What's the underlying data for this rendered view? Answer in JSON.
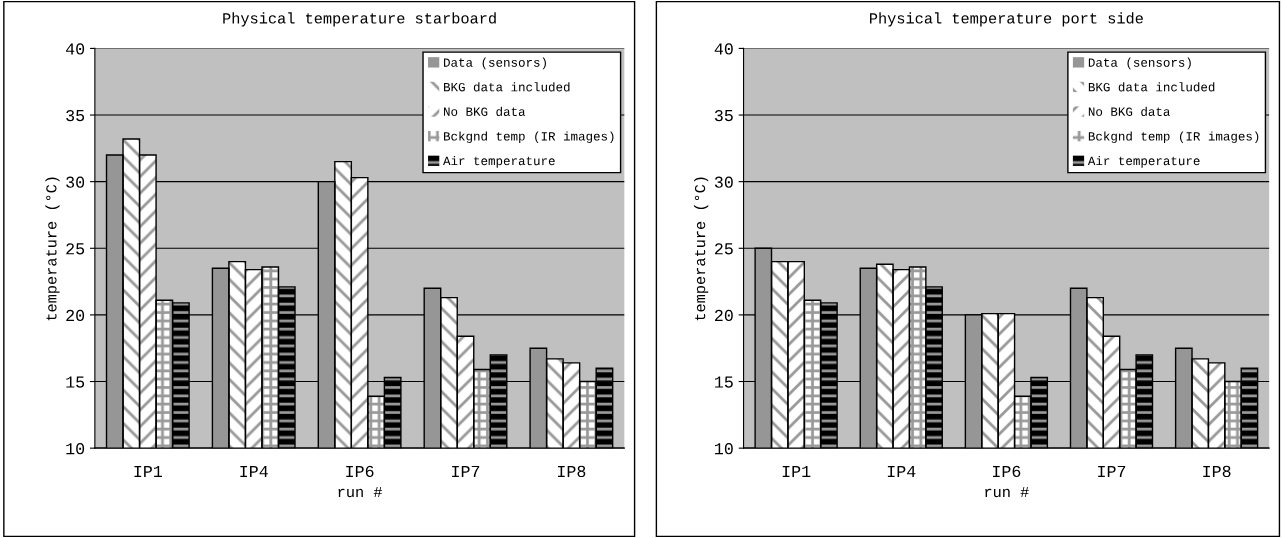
{
  "chart_data": [
    {
      "type": "bar",
      "title": "Physical temperature starboard",
      "xlabel": "run #",
      "ylabel": "temperature (°C)",
      "categories": [
        "IP1",
        "IP4",
        "IP6",
        "IP7",
        "IP8"
      ],
      "ylim": [
        10,
        40
      ],
      "yticks": [
        10,
        15,
        20,
        25,
        30,
        35,
        40
      ],
      "grid": "y",
      "legend": "top right",
      "series": [
        {
          "name": "Data (sensors)",
          "color": "#969696",
          "values": [
            32.0,
            23.5,
            30.0,
            22.0,
            17.5
          ]
        },
        {
          "name": "BKG data included",
          "color": "#ffffff",
          "values": [
            33.2,
            24.0,
            31.5,
            21.3,
            16.7
          ]
        },
        {
          "name": "No BKG data",
          "color": "#ffffff",
          "values": [
            32.0,
            23.4,
            30.3,
            18.4,
            16.4
          ]
        },
        {
          "name": "Bckgnd temp (IR images)",
          "color": "#ffffff",
          "values": [
            21.1,
            23.6,
            13.9,
            15.9,
            15.0
          ]
        },
        {
          "name": "Air temperature",
          "color": "#000000",
          "values": [
            20.9,
            22.1,
            15.3,
            17.0,
            16.0
          ]
        }
      ]
    },
    {
      "type": "bar",
      "title": "Physical temperature port side",
      "xlabel": "run #",
      "ylabel": "temperature (°C)",
      "categories": [
        "IP1",
        "IP4",
        "IP6",
        "IP7",
        "IP8"
      ],
      "ylim": [
        10,
        40
      ],
      "yticks": [
        10,
        15,
        20,
        25,
        30,
        35,
        40
      ],
      "grid": "y",
      "legend": "top right",
      "series": [
        {
          "name": "Data (sensors)",
          "color": "#969696",
          "values": [
            25.0,
            23.5,
            20.0,
            22.0,
            17.5
          ]
        },
        {
          "name": "BKG data included",
          "color": "#ffffff",
          "values": [
            24.0,
            23.8,
            20.1,
            21.3,
            16.7
          ]
        },
        {
          "name": "No BKG data",
          "color": "#ffffff",
          "values": [
            24.0,
            23.4,
            20.1,
            18.4,
            16.4
          ]
        },
        {
          "name": "Bckgnd temp (IR images)",
          "color": "#ffffff",
          "values": [
            21.1,
            23.6,
            13.9,
            15.9,
            15.0
          ]
        },
        {
          "name": "Air temperature",
          "color": "#000000",
          "values": [
            20.9,
            22.1,
            15.3,
            17.0,
            16.0
          ]
        }
      ]
    }
  ]
}
